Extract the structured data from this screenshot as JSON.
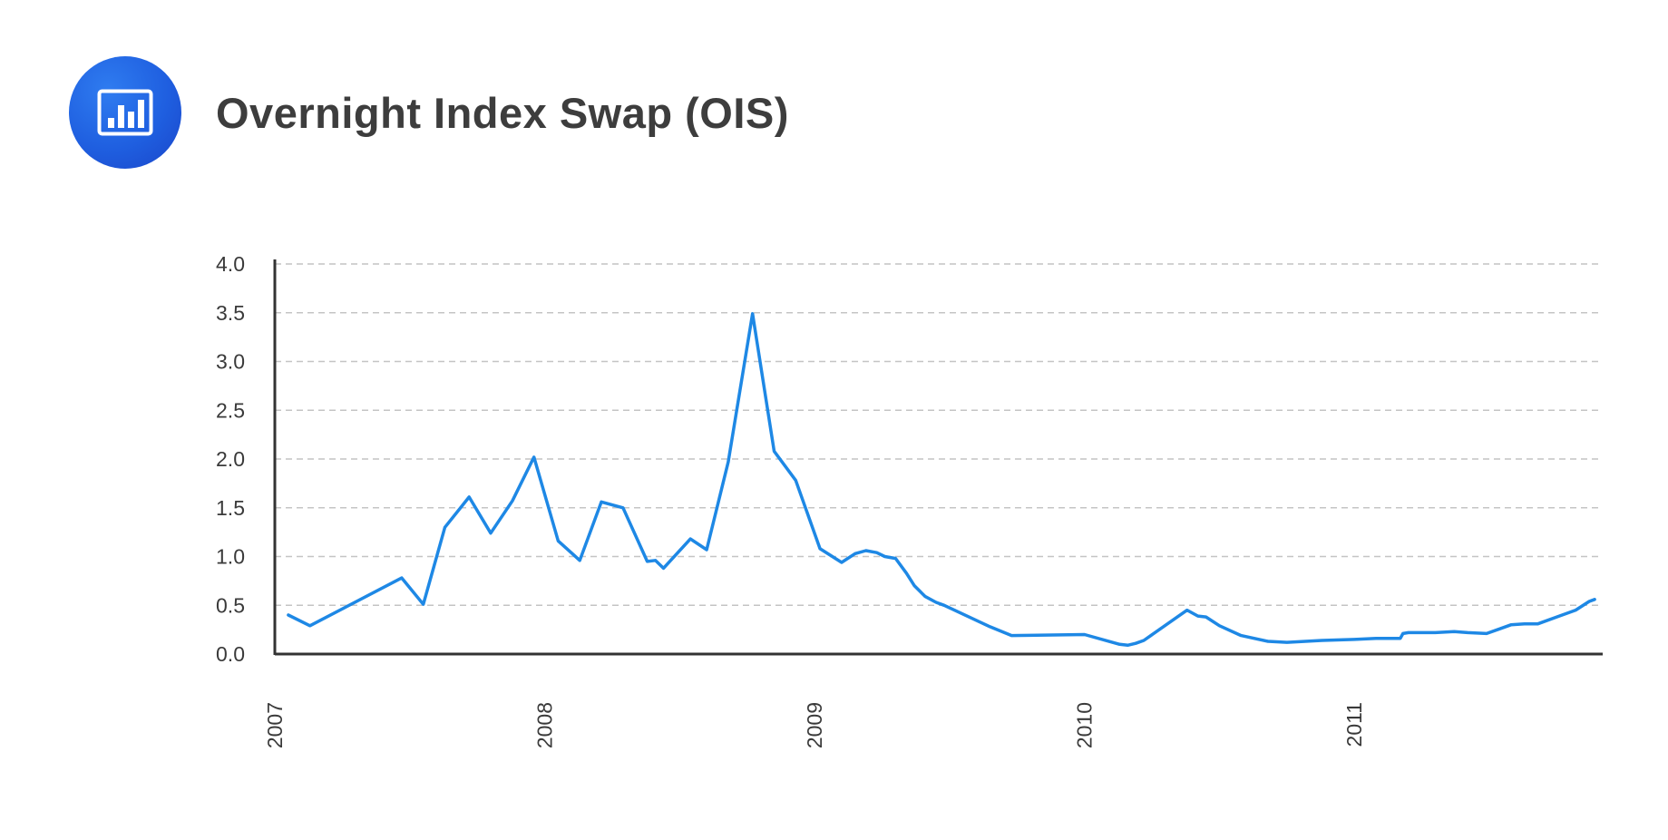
{
  "header": {
    "title": "Overnight Index Swap (OIS)",
    "icon": "bar-chart-icon",
    "icon_color": "#1f5fe0"
  },
  "chart_data": {
    "type": "line",
    "title": "Overnight Index Swap (OIS)",
    "xlabel": "",
    "ylabel": "",
    "xlim": [
      2007.0,
      2011.92
    ],
    "ylim": [
      0,
      4.0
    ],
    "y_ticks": [
      "0.0",
      "0.5",
      "1.0",
      "1.5",
      "2.0",
      "2.5",
      "3.0",
      "3.5",
      "4.0"
    ],
    "x_ticks": [
      "2007",
      "2008",
      "2009",
      "2010",
      "2011"
    ],
    "grid": "horizontal dashed",
    "line_color": "#1e88e5",
    "series": [
      {
        "x": [
          2007.05,
          2007.13,
          2007.47,
          2007.55,
          2007.63,
          2007.72,
          2007.8,
          2007.88,
          2007.96,
          2008.05,
          2008.13,
          2008.21,
          2008.29,
          2008.38,
          2008.41,
          2008.44,
          2008.54,
          2008.6,
          2008.68,
          2008.77,
          2008.85,
          2008.93,
          2009.02,
          2009.1,
          2009.15,
          2009.19,
          2009.23,
          2009.26,
          2009.3,
          2009.34,
          2009.37,
          2009.41,
          2009.45,
          2009.48,
          2009.65,
          2009.73,
          2010.0,
          2010.13,
          2010.16,
          2010.19,
          2010.22,
          2010.38,
          2010.42,
          2010.45,
          2010.5,
          2010.58,
          2010.68,
          2010.75,
          2010.88,
          2011.0,
          2011.08,
          2011.17,
          2011.18,
          2011.2,
          2011.3,
          2011.37,
          2011.42,
          2011.49,
          2011.58,
          2011.63,
          2011.68,
          2011.75,
          2011.82,
          2011.87,
          2011.89
        ]
      }
    ],
    "values": [
      0.4,
      0.29,
      0.78,
      0.51,
      1.3,
      1.61,
      1.24,
      1.57,
      2.02,
      1.16,
      0.96,
      1.56,
      1.5,
      0.95,
      0.96,
      0.88,
      1.18,
      1.07,
      1.97,
      3.49,
      2.08,
      1.78,
      1.08,
      0.94,
      1.03,
      1.06,
      1.04,
      1.0,
      0.98,
      0.83,
      0.7,
      0.59,
      0.53,
      0.5,
      0.28,
      0.19,
      0.2,
      0.1,
      0.09,
      0.11,
      0.14,
      0.45,
      0.39,
      0.38,
      0.29,
      0.19,
      0.13,
      0.12,
      0.14,
      0.15,
      0.16,
      0.16,
      0.21,
      0.22,
      0.22,
      0.23,
      0.22,
      0.21,
      0.3,
      0.31,
      0.31,
      0.38,
      0.45,
      0.54,
      0.56
    ]
  }
}
